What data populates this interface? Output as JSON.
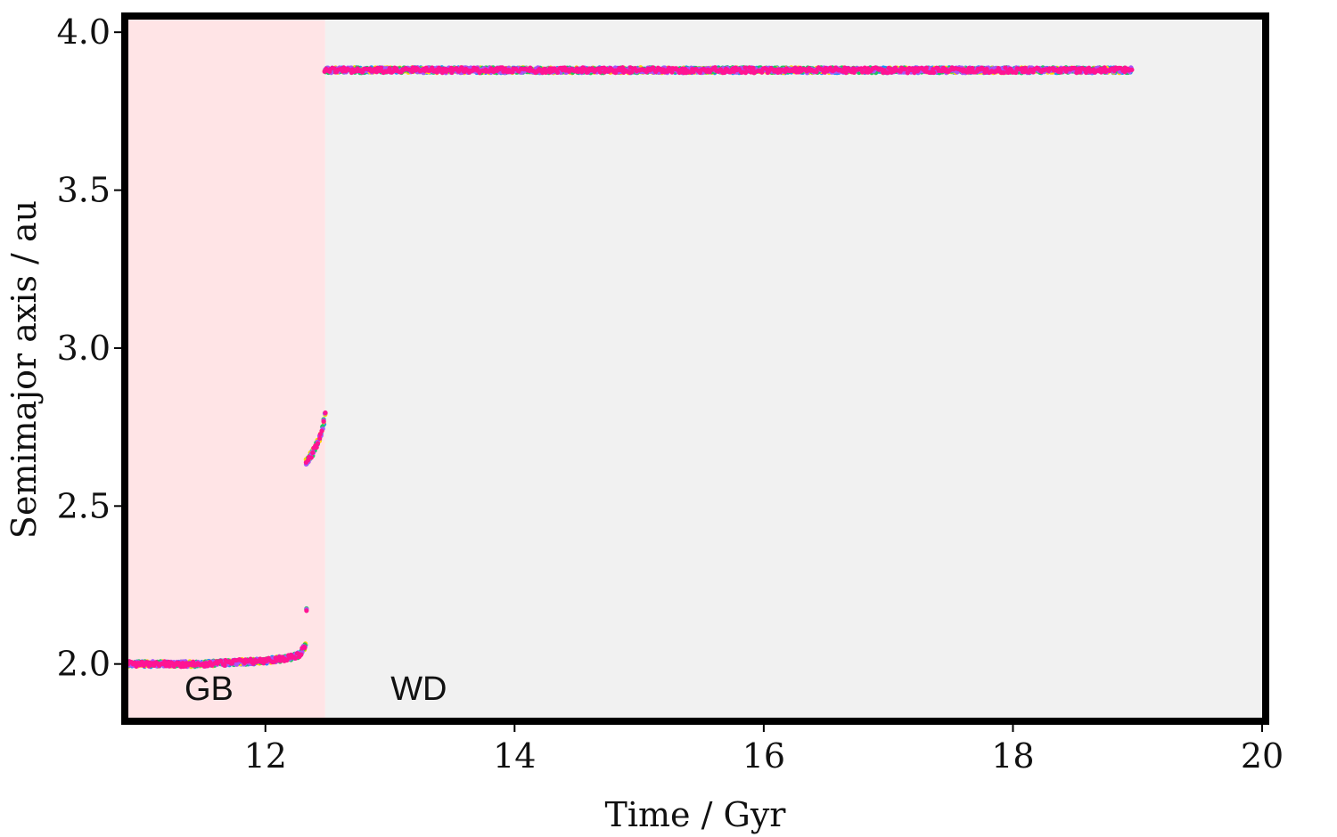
{
  "chart_data": {
    "type": "scatter",
    "title": "",
    "xlabel": "Time / Gyr",
    "ylabel": "Semimajor axis / au",
    "xlim": [
      10.9,
      20
    ],
    "ylim": [
      1.83,
      4.04
    ],
    "x_ticks": [
      12,
      14,
      16,
      18,
      20
    ],
    "y_ticks": [
      2.0,
      2.5,
      3.0,
      3.5,
      4.0
    ],
    "x_tick_labels": [
      "12",
      "14",
      "16",
      "18",
      "20"
    ],
    "y_tick_labels": [
      "2.0",
      "2.5",
      "3.0",
      "3.5",
      "4.0"
    ],
    "grid": false,
    "regions": [
      {
        "label": "GB",
        "x_start": 10.9,
        "x_end": 12.48,
        "color": "#ffe4e6"
      },
      {
        "label": "WD",
        "x_start": 12.48,
        "x_end": 20,
        "color": "#f1f1f1"
      }
    ],
    "series_colors": [
      "#1e90ff",
      "#ffd400",
      "#22c55e",
      "#a855f7",
      "#ff1493"
    ],
    "segments": [
      {
        "phase": "GB",
        "points": [
          [
            10.9,
            2.0
          ],
          [
            11.5,
            2.0
          ],
          [
            12.0,
            2.01
          ],
          [
            12.2,
            2.02
          ],
          [
            12.28,
            2.03
          ],
          [
            12.32,
            2.06
          ]
        ]
      },
      {
        "phase": "GB",
        "points": [
          [
            12.33,
            2.17
          ]
        ]
      },
      {
        "phase": "GB",
        "points": [
          [
            12.33,
            2.64
          ],
          [
            12.38,
            2.67
          ],
          [
            12.42,
            2.7
          ],
          [
            12.45,
            2.73
          ],
          [
            12.47,
            2.77
          ],
          [
            12.48,
            2.79
          ]
        ]
      },
      {
        "phase": "WD",
        "points": [
          [
            12.48,
            3.88
          ],
          [
            15.0,
            3.88
          ],
          [
            17.0,
            3.88
          ],
          [
            18.95,
            3.88
          ]
        ]
      }
    ]
  }
}
